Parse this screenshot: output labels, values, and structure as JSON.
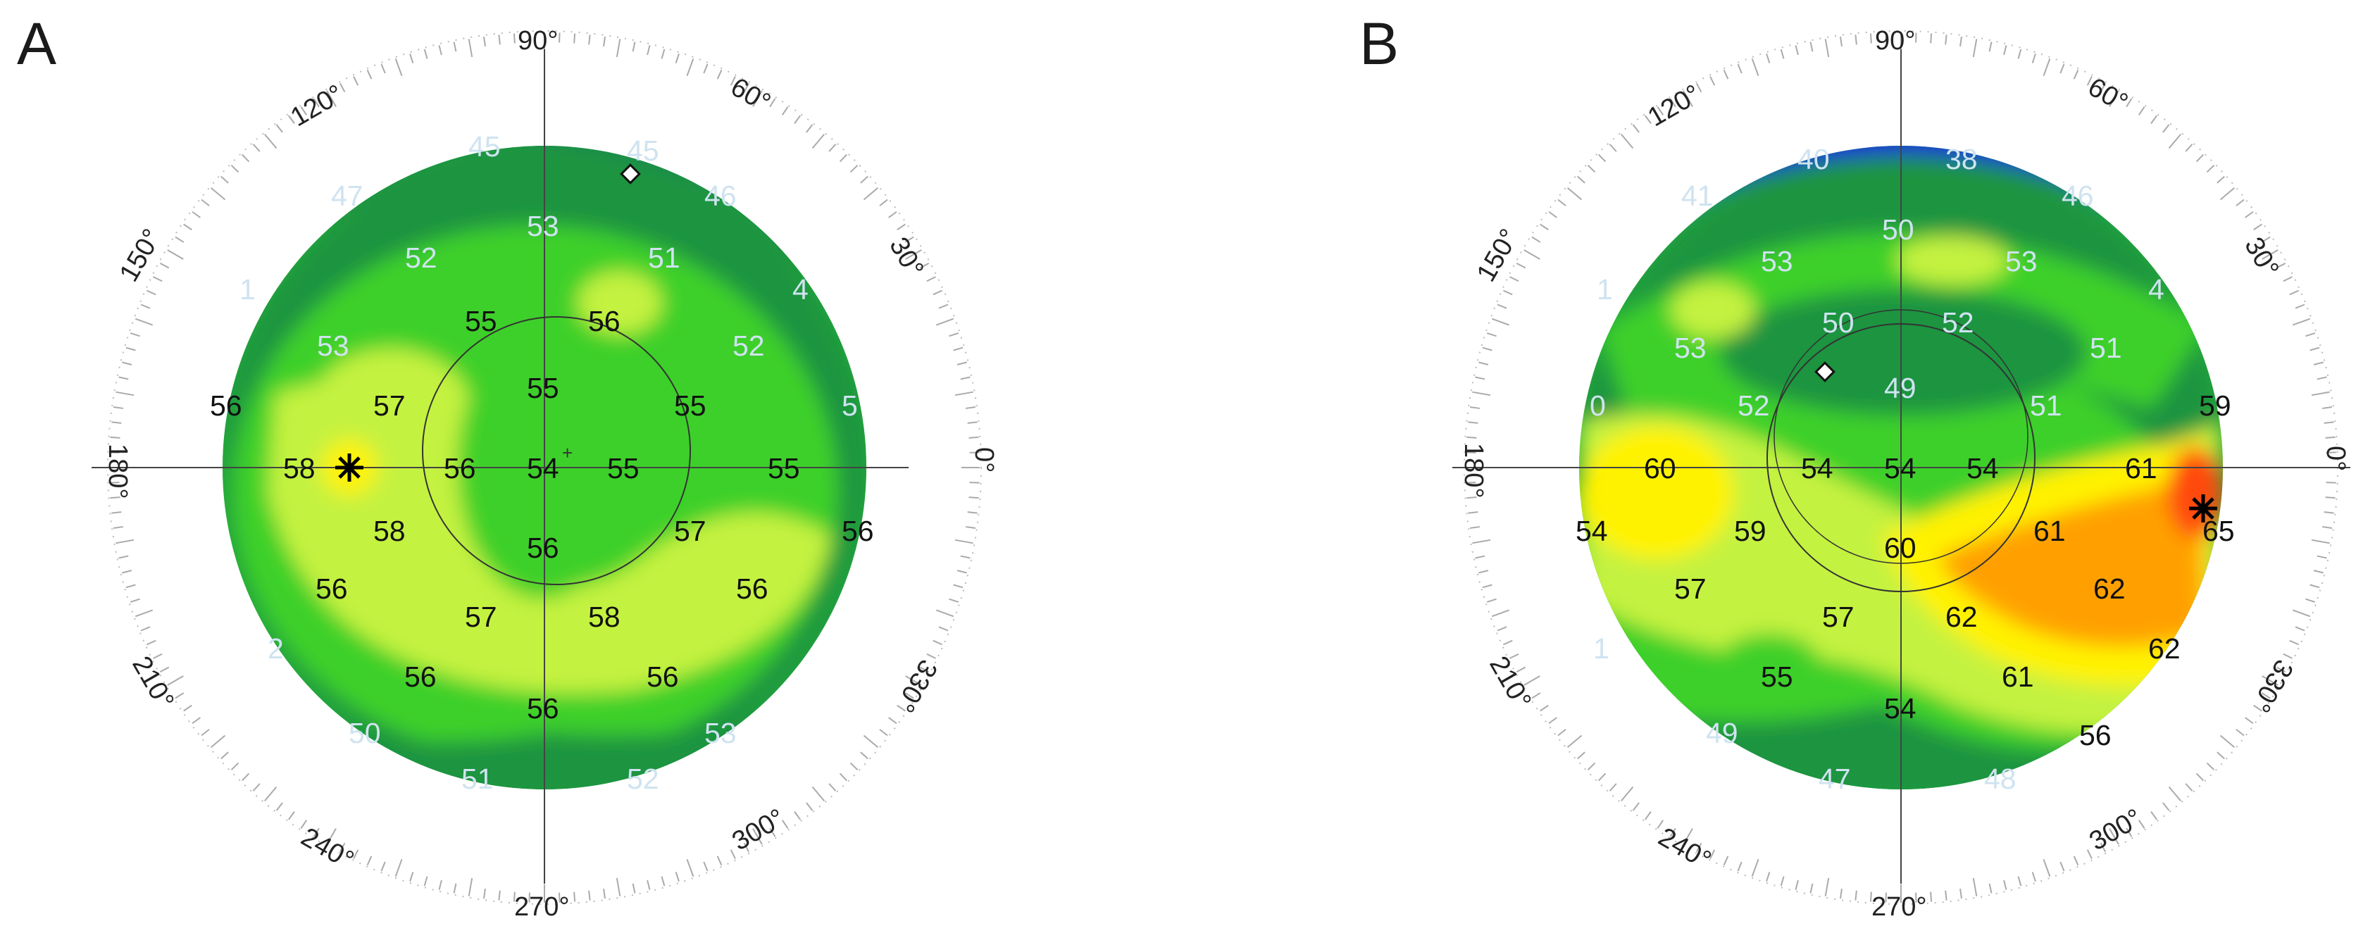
{
  "panels": [
    {
      "id": "a",
      "letter": "A",
      "angles": [
        "90°",
        "60°",
        "30°",
        "0°",
        "330°",
        "300°",
        "270°",
        "240°",
        "210°",
        "180°",
        "150°",
        "120°"
      ],
      "labels": [
        {
          "t": "45",
          "c": "light"
        },
        {
          "t": "45",
          "c": "light"
        },
        {
          "t": "47",
          "c": "light"
        },
        {
          "t": "46",
          "c": "light"
        },
        {
          "t": "53",
          "c": "light"
        },
        {
          "t": "52",
          "c": "light"
        },
        {
          "t": "51",
          "c": "light"
        },
        {
          "t": "1",
          "c": "light"
        },
        {
          "t": "4",
          "c": "light"
        },
        {
          "t": "53",
          "c": "light"
        },
        {
          "t": "52",
          "c": "light"
        },
        {
          "t": "5",
          "c": "light"
        },
        {
          "t": "2",
          "c": "light"
        },
        {
          "t": "50",
          "c": "light"
        },
        {
          "t": "51",
          "c": "light"
        },
        {
          "t": "52",
          "c": "light"
        },
        {
          "t": "53",
          "c": "light"
        },
        {
          "t": "55",
          "c": "dark"
        },
        {
          "t": "56",
          "c": "dark"
        },
        {
          "t": "56",
          "c": "dark"
        },
        {
          "t": "57",
          "c": "dark"
        },
        {
          "t": "55",
          "c": "dark"
        },
        {
          "t": "55",
          "c": "dark"
        },
        {
          "t": "58",
          "c": "dark"
        },
        {
          "t": "56",
          "c": "dark"
        },
        {
          "t": "54",
          "c": "dark"
        },
        {
          "t": "55",
          "c": "dark"
        },
        {
          "t": "55",
          "c": "dark"
        },
        {
          "t": "58",
          "c": "dark"
        },
        {
          "t": "57",
          "c": "dark"
        },
        {
          "t": "56",
          "c": "dark"
        },
        {
          "t": "56",
          "c": "dark"
        },
        {
          "t": "56",
          "c": "dark"
        },
        {
          "t": "57",
          "c": "dark"
        },
        {
          "t": "58",
          "c": "dark"
        },
        {
          "t": "56",
          "c": "dark"
        },
        {
          "t": "56",
          "c": "dark"
        },
        {
          "t": "56",
          "c": "dark"
        },
        {
          "t": "56",
          "c": "dark"
        }
      ],
      "colors": {
        "blue": "#1f2fd8",
        "darkgreen": "#1f8f3e",
        "midgreen": "#3fbf2f",
        "green": "#35d22a",
        "lime": "#b8f03a",
        "yellow": "#fff200",
        "orange": "#ffa000",
        "red": "#ff4a10"
      }
    },
    {
      "id": "b",
      "letter": "B",
      "angles": [
        "90°",
        "60°",
        "30°",
        "0°",
        "330°",
        "300°",
        "270°",
        "240°",
        "210°",
        "180°",
        "150°",
        "120°"
      ],
      "labels": [
        {
          "t": "40",
          "c": "light"
        },
        {
          "t": "38",
          "c": "light"
        },
        {
          "t": "41",
          "c": "light"
        },
        {
          "t": "46",
          "c": "light"
        },
        {
          "t": "50",
          "c": "light"
        },
        {
          "t": "53",
          "c": "light"
        },
        {
          "t": "53",
          "c": "light"
        },
        {
          "t": "1",
          "c": "light"
        },
        {
          "t": "4",
          "c": "light"
        },
        {
          "t": "53",
          "c": "light"
        },
        {
          "t": "50",
          "c": "light"
        },
        {
          "t": "52",
          "c": "light"
        },
        {
          "t": "51",
          "c": "light"
        },
        {
          "t": "52",
          "c": "light"
        },
        {
          "t": "49",
          "c": "light"
        },
        {
          "t": "51",
          "c": "light"
        },
        {
          "t": "0",
          "c": "light"
        },
        {
          "t": "1",
          "c": "light"
        },
        {
          "t": "49",
          "c": "light"
        },
        {
          "t": "47",
          "c": "light"
        },
        {
          "t": "48",
          "c": "light"
        },
        {
          "t": "59",
          "c": "dark"
        },
        {
          "t": "60",
          "c": "dark"
        },
        {
          "t": "54",
          "c": "dark"
        },
        {
          "t": "54",
          "c": "dark"
        },
        {
          "t": "54",
          "c": "dark"
        },
        {
          "t": "61",
          "c": "dark"
        },
        {
          "t": "54",
          "c": "dark"
        },
        {
          "t": "59",
          "c": "dark"
        },
        {
          "t": "61",
          "c": "dark"
        },
        {
          "t": "65",
          "c": "dark"
        },
        {
          "t": "60",
          "c": "dark"
        },
        {
          "t": "57",
          "c": "dark"
        },
        {
          "t": "57",
          "c": "dark"
        },
        {
          "t": "62",
          "c": "dark"
        },
        {
          "t": "62",
          "c": "dark"
        },
        {
          "t": "62",
          "c": "dark"
        },
        {
          "t": "55",
          "c": "dark"
        },
        {
          "t": "61",
          "c": "dark"
        },
        {
          "t": "54",
          "c": "dark"
        },
        {
          "t": "56",
          "c": "dark"
        }
      ],
      "colors": {
        "blue": "#1f2fd8",
        "darkgreen": "#1f8f3e",
        "midgreen": "#3fbf2f",
        "green": "#35d22a",
        "lime": "#b8f03a",
        "yellow": "#fff200",
        "orange": "#ffa000",
        "red": "#ff4a10"
      }
    }
  ]
}
